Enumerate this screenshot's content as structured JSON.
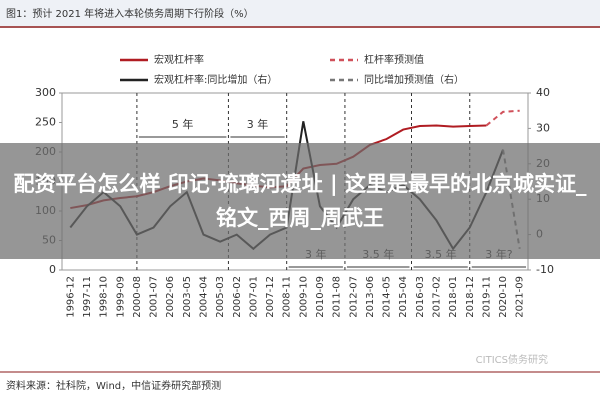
{
  "chart_data": {
    "type": "line",
    "title": "图1：预计 2021 年将进入本轮债务周期下行阶段（%）",
    "categories": [
      "1996-12",
      "1997-11",
      "1998-10",
      "1999-09",
      "2000-08",
      "2001-07",
      "2002-06",
      "2003-05",
      "2004-04",
      "2005-03",
      "2006-02",
      "2007-01",
      "2007-12",
      "2008-11",
      "2009-10",
      "2010-09",
      "2011-08",
      "2012-07",
      "2013-06",
      "2014-05",
      "2015-04",
      "2016-03",
      "2017-02",
      "2018-01",
      "2018-12",
      "2019-11",
      "2020-10",
      "2021-09"
    ],
    "series": [
      {
        "name": "宏观杠杆率",
        "color": "#b01c22",
        "style": "solid",
        "axis": "y",
        "values": [
          105,
          110,
          118,
          122,
          125,
          132,
          142,
          150,
          155,
          152,
          147,
          143,
          140,
          142,
          172,
          178,
          180,
          192,
          212,
          222,
          238,
          244,
          245,
          243,
          244,
          245,
          null,
          null
        ]
      },
      {
        "name": "杠杆率预测值",
        "color": "#d0505a",
        "style": "dashed",
        "axis": "y",
        "values": [
          null,
          null,
          null,
          null,
          null,
          null,
          null,
          null,
          null,
          null,
          null,
          null,
          null,
          null,
          null,
          null,
          null,
          null,
          null,
          null,
          null,
          null,
          null,
          null,
          null,
          245,
          268,
          270
        ]
      },
      {
        "name": "宏观杠杆率:同比增加（右）",
        "color": "#222222",
        "style": "solid",
        "axis": "y2",
        "values": [
          2,
          8,
          12,
          8,
          0,
          2,
          8,
          12,
          0,
          -2,
          0,
          -4,
          0,
          2,
          32,
          8,
          2,
          10,
          14,
          12,
          14,
          10,
          4,
          -4,
          2,
          12,
          24,
          null
        ]
      },
      {
        "name": "同比增加预测值（右）",
        "color": "#777777",
        "style": "dashed",
        "axis": "y2",
        "values": [
          null,
          null,
          null,
          null,
          null,
          null,
          null,
          null,
          null,
          null,
          null,
          null,
          null,
          null,
          null,
          null,
          null,
          null,
          null,
          null,
          null,
          null,
          null,
          null,
          null,
          null,
          24,
          -4
        ]
      }
    ],
    "ylim": [
      0,
      300
    ],
    "yticks": [
      0,
      50,
      100,
      150,
      200,
      250,
      300
    ],
    "y2lim": [
      -10,
      40
    ],
    "y2ticks": [
      -10,
      0,
      10,
      20,
      30,
      40
    ],
    "annotations": [
      "5 年",
      "3 年",
      "3 年",
      "3.5 年",
      "3.5 年",
      "3 年?"
    ],
    "source": "资料来源：社科院，Wind，中信证券研究部预测"
  },
  "watermark": "CITICS债务研究",
  "overlay_text": "配资平台怎么样 印记·琉璃河遗址 | 这里是最早的北京城实证_铭文_西周_周武王"
}
